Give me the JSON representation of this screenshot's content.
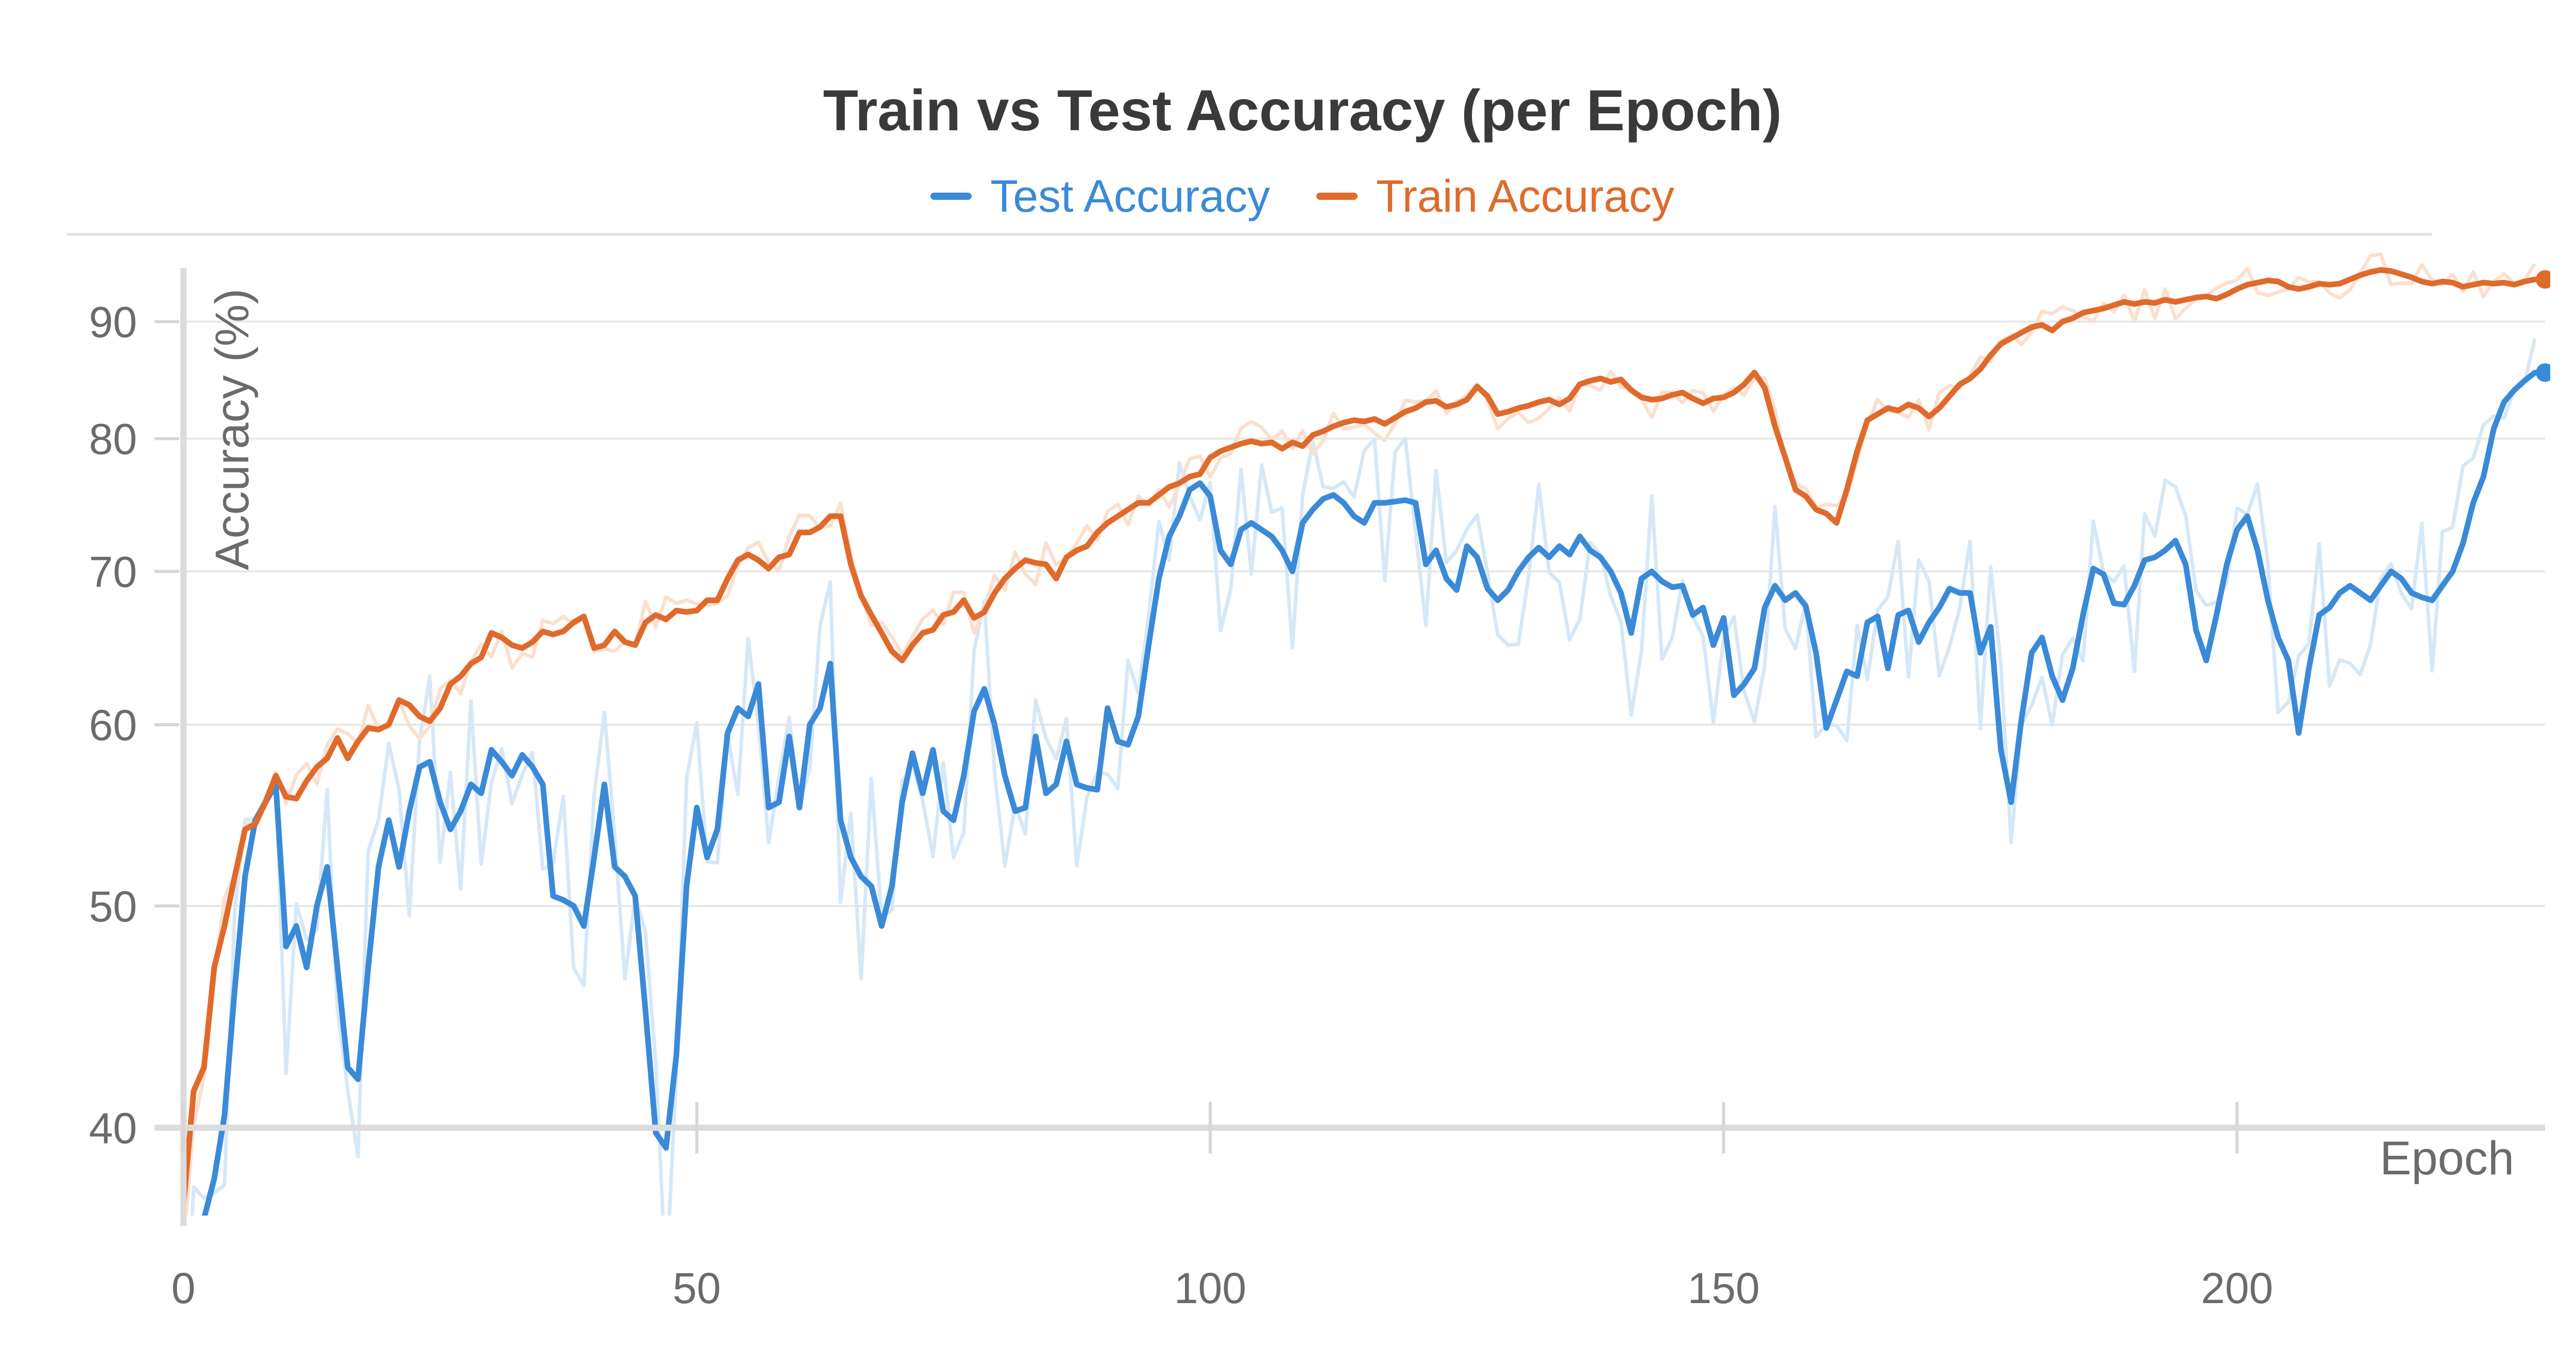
{
  "chart_data": {
    "type": "line",
    "title": "Train vs Test Accuracy (per Epoch)",
    "xlabel": "Epoch",
    "ylabel": "Accuracy (%)",
    "xlim": [
      0,
      230
    ],
    "ylim": [
      37,
      95
    ],
    "y_scale": "log",
    "xticks": [
      0,
      50,
      100,
      150,
      200
    ],
    "yticks": [
      40,
      50,
      60,
      70,
      80,
      90
    ],
    "grid": true,
    "legend_position": "top-center",
    "series": [
      {
        "name": "Test Accuracy",
        "color": "#3a8ad8",
        "raw_color": "#d6e8f7",
        "x": [
          0,
          1,
          2,
          3,
          4,
          5,
          6,
          7,
          8,
          9,
          10,
          11,
          12,
          13,
          14,
          15,
          16,
          17,
          18,
          19,
          20,
          21,
          22,
          23,
          24,
          25,
          26,
          27,
          28,
          29,
          30,
          31,
          32,
          33,
          34,
          35,
          36,
          37,
          38,
          39,
          40,
          41,
          42,
          43,
          44,
          45,
          46,
          47,
          48,
          49,
          50,
          51,
          52,
          53,
          54,
          55,
          56,
          57,
          58,
          59,
          60,
          61,
          62,
          63,
          64,
          65,
          66,
          67,
          68,
          69,
          70,
          71,
          72,
          73,
          74,
          75,
          76,
          77,
          78,
          79,
          80,
          81,
          82,
          83,
          84,
          85,
          86,
          87,
          88,
          89,
          90,
          91,
          92,
          93,
          94,
          95,
          96,
          97,
          98,
          99,
          100,
          101,
          102,
          103,
          104,
          105,
          106,
          107,
          108,
          109,
          110,
          111,
          112,
          113,
          114,
          115,
          116,
          117,
          118,
          119,
          120,
          121,
          122,
          123,
          124,
          125,
          126,
          127,
          128,
          129,
          130,
          131,
          132,
          133,
          134,
          135,
          136,
          137,
          138,
          139,
          140,
          141,
          142,
          143,
          144,
          145,
          146,
          147,
          148,
          149,
          150,
          151,
          152,
          153,
          154,
          155,
          156,
          157,
          158,
          159,
          160,
          161,
          162,
          163,
          164,
          165,
          166,
          167,
          168,
          169,
          170,
          171,
          172,
          173,
          174,
          175,
          176,
          177,
          178,
          179,
          180,
          181,
          182,
          183,
          184,
          185,
          186,
          187,
          188,
          189,
          190,
          191,
          192,
          193,
          194,
          195,
          196,
          197,
          198,
          199,
          200,
          201,
          202,
          203,
          204,
          205,
          206,
          207,
          208,
          209,
          210,
          211,
          212,
          213,
          214,
          215,
          216,
          217,
          218,
          219,
          220,
          221,
          222,
          223,
          224,
          225,
          226,
          227,
          228,
          229,
          230
        ],
        "smoothed": [
          34.5,
          34.8,
          36.5,
          38.0,
          40.5,
          46.0,
          51.5,
          54.5,
          55.5,
          56.5,
          48.0,
          49.0,
          47.0,
          50.0,
          52.0,
          47.0,
          42.5,
          42.0,
          47.0,
          52.0,
          54.5,
          52.0,
          55.0,
          57.5,
          57.8,
          55.5,
          54.0,
          55.0,
          56.5,
          56.0,
          58.5,
          57.8,
          57.0,
          58.2,
          57.5,
          56.5,
          50.5,
          50.3,
          50.0,
          49.0,
          52.5,
          56.5,
          52.0,
          51.5,
          50.5,
          45.0,
          39.8,
          39.2,
          43.0,
          51.0,
          55.2,
          52.5,
          54.0,
          59.5,
          61.0,
          60.5,
          62.5,
          55.2,
          55.5,
          59.3,
          55.2,
          60.0,
          61.0,
          63.8,
          54.5,
          52.5,
          51.5,
          51.0,
          49.0,
          51.0,
          55.5,
          58.3,
          56.0,
          58.5,
          55.0,
          54.5,
          57.0,
          60.8,
          62.2,
          60.0,
          57.0,
          55.0,
          55.2,
          59.3,
          56.0,
          56.5,
          59.0,
          56.5,
          56.3,
          56.2,
          61.0,
          59.0,
          58.8,
          60.5,
          65.0,
          69.5,
          72.5,
          74.0,
          76.0,
          76.5,
          75.5,
          71.5,
          70.5,
          73.0,
          73.5,
          73.0,
          72.5,
          71.5,
          70.0,
          73.5,
          74.5,
          75.3,
          75.6,
          75.0,
          74.0,
          73.5,
          75.0,
          75.0,
          75.1,
          75.2,
          75.0,
          70.5,
          71.5,
          69.5,
          68.7,
          71.8,
          71.0,
          68.8,
          68.0,
          68.7,
          70.0,
          71.0,
          71.7,
          71.0,
          71.8,
          71.2,
          72.5,
          71.5,
          71.0,
          70.0,
          68.5,
          65.8,
          69.5,
          70.0,
          69.3,
          68.9,
          69.0,
          67.0,
          67.5,
          65.0,
          66.8,
          61.8,
          62.5,
          63.5,
          67.5,
          69.0,
          68.0,
          68.5,
          67.6,
          64.5,
          59.8,
          61.5,
          63.3,
          63.0,
          66.5,
          66.9,
          63.5,
          67.0,
          67.3,
          65.2,
          66.5,
          67.5,
          68.8,
          68.5,
          68.5,
          64.5,
          66.2,
          58.5,
          55.5,
          60.3,
          64.5,
          65.5,
          63.0,
          61.5,
          63.5,
          67.0,
          70.2,
          69.8,
          67.8,
          67.7,
          69.0,
          70.8,
          71.0,
          71.5,
          72.2,
          70.5,
          66.0,
          64.0,
          67.0,
          70.5,
          73.0,
          74.0,
          71.5,
          68.0,
          65.5,
          64.0,
          59.5,
          63.5,
          67.0,
          67.5,
          68.5,
          69.0,
          68.5,
          68.0,
          69.0,
          70.0,
          69.5,
          68.5,
          68.2,
          68.0,
          69.0,
          70.0,
          72.0,
          75.0,
          77.0,
          80.8,
          83.0,
          84.0,
          84.8,
          85.5
        ]
      },
      {
        "name": "Train Accuracy",
        "color": "#e06a2c",
        "raw_color": "#fbe0cf",
        "x": [
          0,
          1,
          2,
          3,
          4,
          5,
          6,
          7,
          8,
          9,
          10,
          11,
          12,
          13,
          14,
          15,
          16,
          17,
          18,
          19,
          20,
          21,
          22,
          23,
          24,
          25,
          26,
          27,
          28,
          29,
          30,
          31,
          32,
          33,
          34,
          35,
          36,
          37,
          38,
          39,
          40,
          41,
          42,
          43,
          44,
          45,
          46,
          47,
          48,
          49,
          50,
          51,
          52,
          53,
          54,
          55,
          56,
          57,
          58,
          59,
          60,
          61,
          62,
          63,
          64,
          65,
          66,
          67,
          68,
          69,
          70,
          71,
          72,
          73,
          74,
          75,
          76,
          77,
          78,
          79,
          80,
          81,
          82,
          83,
          84,
          85,
          86,
          87,
          88,
          89,
          90,
          91,
          92,
          93,
          94,
          95,
          96,
          97,
          98,
          99,
          100,
          101,
          102,
          103,
          104,
          105,
          106,
          107,
          108,
          109,
          110,
          111,
          112,
          113,
          114,
          115,
          116,
          117,
          118,
          119,
          120,
          121,
          122,
          123,
          124,
          125,
          126,
          127,
          128,
          129,
          130,
          131,
          132,
          133,
          134,
          135,
          136,
          137,
          138,
          139,
          140,
          141,
          142,
          143,
          144,
          145,
          146,
          147,
          148,
          149,
          150,
          151,
          152,
          153,
          154,
          155,
          156,
          157,
          158,
          159,
          160,
          161,
          162,
          163,
          164,
          165,
          166,
          167,
          168,
          169,
          170,
          171,
          172,
          173,
          174,
          175,
          176,
          177,
          178,
          179,
          180,
          181,
          182,
          183,
          184,
          185,
          186,
          187,
          188,
          189,
          190,
          191,
          192,
          193,
          194,
          195,
          196,
          197,
          198,
          199,
          200,
          201,
          202,
          203,
          204,
          205,
          206,
          207,
          208,
          209,
          210,
          211,
          212,
          213,
          214,
          215,
          216,
          217,
          218,
          219,
          220,
          221,
          222,
          223,
          224,
          225,
          226,
          227,
          228,
          229,
          230
        ],
        "smoothed": [
          37.0,
          41.5,
          42.5,
          47.0,
          49.0,
          51.5,
          54.0,
          54.3,
          55.5,
          57.0,
          55.8,
          55.7,
          56.7,
          57.5,
          58.0,
          59.2,
          58.0,
          59.0,
          59.8,
          59.7,
          60.0,
          61.5,
          61.2,
          60.5,
          60.2,
          61.0,
          62.5,
          63.0,
          63.8,
          64.2,
          65.8,
          65.5,
          65.0,
          64.8,
          65.2,
          65.9,
          65.7,
          65.9,
          66.5,
          66.9,
          64.8,
          65.0,
          65.9,
          65.2,
          65.0,
          66.5,
          67.0,
          66.7,
          67.3,
          67.2,
          67.3,
          68.0,
          68.0,
          69.5,
          70.8,
          71.2,
          70.8,
          70.2,
          71.0,
          71.2,
          72.8,
          72.8,
          73.2,
          74.0,
          74.0,
          70.5,
          68.3,
          67.0,
          65.8,
          64.6,
          64.0,
          65.0,
          65.8,
          66.0,
          67.0,
          67.2,
          68.0,
          66.8,
          67.2,
          68.5,
          69.5,
          70.2,
          70.8,
          70.6,
          70.5,
          69.5,
          71.0,
          71.5,
          71.8,
          72.8,
          73.5,
          74.0,
          74.5,
          75.0,
          75.0,
          75.6,
          76.2,
          76.5,
          77.0,
          77.2,
          78.5,
          79.0,
          79.3,
          79.6,
          79.8,
          79.6,
          79.7,
          79.2,
          79.7,
          79.4,
          80.3,
          80.6,
          81.0,
          81.3,
          81.5,
          81.4,
          81.6,
          81.2,
          81.7,
          82.2,
          82.5,
          83.0,
          83.1,
          82.6,
          82.8,
          83.2,
          84.3,
          83.5,
          82.0,
          82.2,
          82.5,
          82.7,
          83.0,
          83.2,
          82.8,
          83.3,
          84.5,
          84.8,
          85.0,
          84.7,
          84.9,
          84.0,
          83.4,
          83.2,
          83.3,
          83.6,
          83.8,
          83.3,
          82.9,
          83.3,
          83.4,
          83.8,
          84.5,
          85.5,
          84.2,
          81.0,
          78.5,
          76.0,
          75.5,
          74.5,
          74.2,
          73.5,
          76.0,
          79.0,
          81.5,
          82.0,
          82.5,
          82.3,
          82.8,
          82.5,
          81.8,
          82.5,
          83.5,
          84.5,
          85.0,
          85.8,
          87.0,
          88.0,
          88.5,
          89.0,
          89.5,
          89.7,
          89.2,
          90.0,
          90.3,
          90.8,
          91.0,
          91.2,
          91.5,
          91.8,
          91.6,
          91.8,
          91.7,
          92.0,
          91.8,
          92.0,
          92.2,
          92.3,
          92.1,
          92.5,
          93.0,
          93.4,
          93.6,
          93.8,
          93.7,
          93.2,
          93.0,
          93.2,
          93.5,
          93.4,
          93.5,
          93.9,
          94.3,
          94.6,
          94.8,
          94.7,
          94.4,
          94.1,
          93.7,
          93.5,
          93.7,
          93.6,
          93.2,
          93.4,
          93.6,
          93.5,
          93.6,
          93.4,
          93.7,
          93.9
        ]
      }
    ]
  }
}
